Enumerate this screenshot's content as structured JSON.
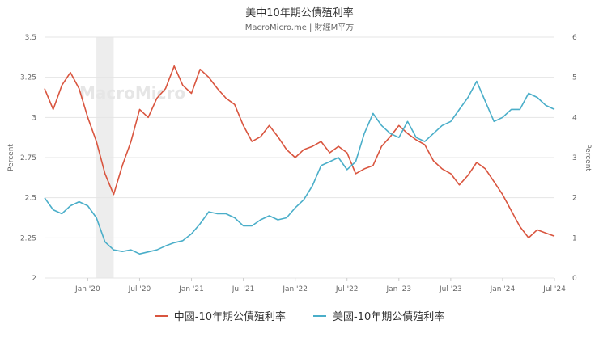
{
  "header": {
    "title": "美中10年期公債殖利率",
    "subtitle": "MacroMicro.me | 財經M平方"
  },
  "watermark": "MacroMicro",
  "chart_data": {
    "type": "line",
    "title": "美中10年期公債殖利率",
    "y_left": {
      "label": "Percent",
      "range": [
        2,
        3.5
      ],
      "ticks": [
        "2",
        "2.25",
        "2.5",
        "2.75",
        "3",
        "3.25",
        "3.5"
      ]
    },
    "y_right": {
      "label": "Percent",
      "range": [
        0,
        6
      ],
      "ticks": [
        "0",
        "1",
        "2",
        "3",
        "4",
        "5",
        "6"
      ]
    },
    "x_ticks": [
      "Jan '20",
      "Jul '20",
      "Jan '21",
      "Jul '21",
      "Jan '22",
      "Jul '22",
      "Jan '23",
      "Jul '23",
      "Jan '24",
      "Jul '24"
    ],
    "x_range": [
      "2019-08",
      "2024-07"
    ],
    "shaded_period": [
      "2020-02",
      "2020-04"
    ],
    "legend_position": "bottom",
    "grid": "horizontal",
    "series": [
      {
        "name": "中國-10年期公債殖利率",
        "axis": "left",
        "color": "#d9553f",
        "x": [
          "2019-08",
          "2019-09",
          "2019-10",
          "2019-11",
          "2019-12",
          "2020-01",
          "2020-02",
          "2020-03",
          "2020-04",
          "2020-05",
          "2020-06",
          "2020-07",
          "2020-08",
          "2020-09",
          "2020-10",
          "2020-11",
          "2020-12",
          "2021-01",
          "2021-02",
          "2021-03",
          "2021-04",
          "2021-05",
          "2021-06",
          "2021-07",
          "2021-08",
          "2021-09",
          "2021-10",
          "2021-11",
          "2021-12",
          "2022-01",
          "2022-02",
          "2022-03",
          "2022-04",
          "2022-05",
          "2022-06",
          "2022-07",
          "2022-08",
          "2022-09",
          "2022-10",
          "2022-11",
          "2022-12",
          "2023-01",
          "2023-02",
          "2023-03",
          "2023-04",
          "2023-05",
          "2023-06",
          "2023-07",
          "2023-08",
          "2023-09",
          "2023-10",
          "2023-11",
          "2023-12",
          "2024-01",
          "2024-02",
          "2024-03",
          "2024-04",
          "2024-05",
          "2024-06",
          "2024-07"
        ],
        "values": [
          3.18,
          3.05,
          3.2,
          3.28,
          3.18,
          3.0,
          2.85,
          2.65,
          2.52,
          2.7,
          2.85,
          3.05,
          3.0,
          3.12,
          3.18,
          3.32,
          3.2,
          3.15,
          3.3,
          3.25,
          3.18,
          3.12,
          3.08,
          2.95,
          2.85,
          2.88,
          2.95,
          2.88,
          2.8,
          2.75,
          2.8,
          2.82,
          2.85,
          2.78,
          2.82,
          2.78,
          2.65,
          2.68,
          2.7,
          2.82,
          2.88,
          2.95,
          2.9,
          2.86,
          2.83,
          2.73,
          2.68,
          2.65,
          2.58,
          2.64,
          2.72,
          2.68,
          2.6,
          2.52,
          2.42,
          2.32,
          2.25,
          2.3,
          2.28,
          2.26
        ]
      },
      {
        "name": "美國-10年期公債殖利率",
        "axis": "right",
        "color": "#4aaec9",
        "x": [
          "2019-08",
          "2019-09",
          "2019-10",
          "2019-11",
          "2019-12",
          "2020-01",
          "2020-02",
          "2020-03",
          "2020-04",
          "2020-05",
          "2020-06",
          "2020-07",
          "2020-08",
          "2020-09",
          "2020-10",
          "2020-11",
          "2020-12",
          "2021-01",
          "2021-02",
          "2021-03",
          "2021-04",
          "2021-05",
          "2021-06",
          "2021-07",
          "2021-08",
          "2021-09",
          "2021-10",
          "2021-11",
          "2021-12",
          "2022-01",
          "2022-02",
          "2022-03",
          "2022-04",
          "2022-05",
          "2022-06",
          "2022-07",
          "2022-08",
          "2022-09",
          "2022-10",
          "2022-11",
          "2022-12",
          "2023-01",
          "2023-02",
          "2023-03",
          "2023-04",
          "2023-05",
          "2023-06",
          "2023-07",
          "2023-08",
          "2023-09",
          "2023-10",
          "2023-11",
          "2023-12",
          "2024-01",
          "2024-02",
          "2024-03",
          "2024-04",
          "2024-05",
          "2024-06",
          "2024-07"
        ],
        "values": [
          2.0,
          1.7,
          1.6,
          1.8,
          1.9,
          1.8,
          1.5,
          0.9,
          0.7,
          0.66,
          0.7,
          0.6,
          0.65,
          0.7,
          0.8,
          0.88,
          0.93,
          1.1,
          1.35,
          1.65,
          1.6,
          1.6,
          1.5,
          1.3,
          1.3,
          1.45,
          1.55,
          1.45,
          1.5,
          1.75,
          1.95,
          2.3,
          2.8,
          2.9,
          3.0,
          2.7,
          2.9,
          3.6,
          4.1,
          3.8,
          3.6,
          3.5,
          3.9,
          3.5,
          3.4,
          3.6,
          3.8,
          3.9,
          4.2,
          4.5,
          4.9,
          4.4,
          3.9,
          4.0,
          4.2,
          4.2,
          4.6,
          4.5,
          4.3,
          4.2
        ]
      }
    ]
  }
}
